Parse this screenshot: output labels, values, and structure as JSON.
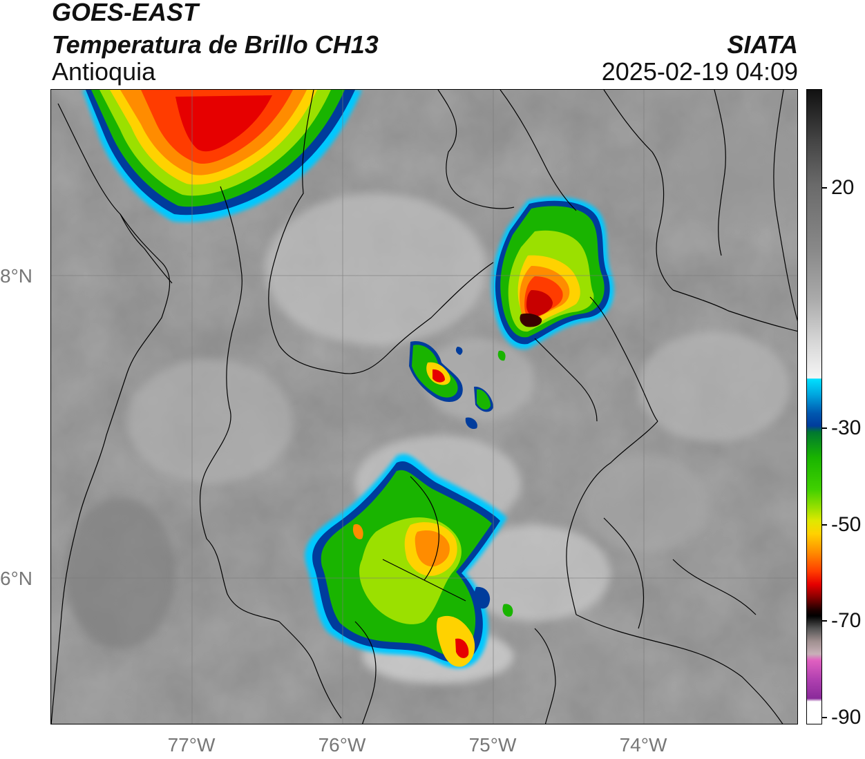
{
  "header": {
    "line1": "GOES-EAST",
    "line2": "Temperatura de Brillo CH13",
    "region": "Antioquia",
    "organization": "SIATA",
    "timestamp": "2025-02-19 04:09"
  },
  "map": {
    "lon_range": [
      -77.95,
      -72.97
    ],
    "lat_range": [
      5.0,
      9.2
    ],
    "lon_ticks": [
      {
        "value": -77,
        "label": "77°W"
      },
      {
        "value": -76,
        "label": "76°W"
      },
      {
        "value": -75,
        "label": "75°W"
      },
      {
        "value": -74,
        "label": "74°W"
      }
    ],
    "lat_ticks": [
      {
        "value": 8,
        "label": "8°N"
      },
      {
        "value": 6,
        "label": "6°N"
      }
    ],
    "gridlines": true,
    "background_color": "#8e8e8e"
  },
  "colorbar": {
    "range": [
      -90,
      30
    ],
    "ticks": [
      {
        "value": 20,
        "label": "20"
      },
      {
        "value": -30,
        "label": "-30"
      },
      {
        "value": -50,
        "label": "-50"
      },
      {
        "value": -70,
        "label": "-70"
      },
      {
        "value": -90,
        "label": "-90"
      }
    ]
  }
}
